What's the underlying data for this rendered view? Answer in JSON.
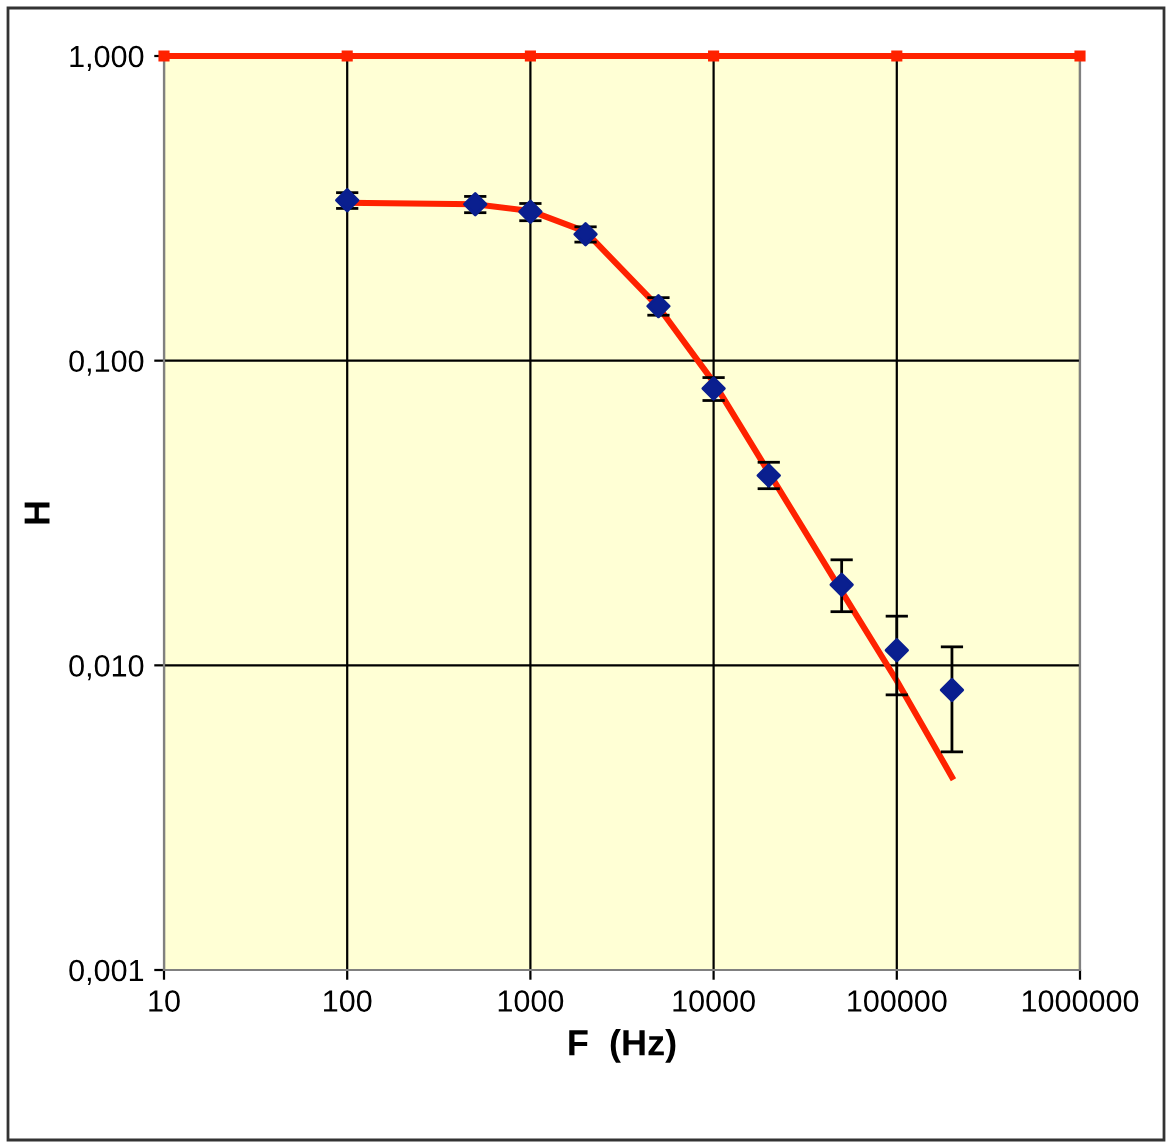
{
  "chart_data": {
    "type": "scatter",
    "xlabel": "F  (Hz)",
    "ylabel": "H",
    "log": "xy",
    "grid": true,
    "xlim": [
      10,
      1000000
    ],
    "ylim": [
      0.001,
      1
    ],
    "xticks": [
      10,
      100,
      1000,
      10000,
      100000,
      1000000
    ],
    "yticks": [
      {
        "value": 0.001,
        "label": "0,001"
      },
      {
        "value": 0.01,
        "label": "0,010"
      },
      {
        "value": 0.1,
        "label": "0,100"
      },
      {
        "value": 1,
        "label": "1,000"
      }
    ],
    "series": [
      {
        "type": "line",
        "color": "#ff2200",
        "marker": "square",
        "x": [
          10,
          100,
          1000,
          10000,
          100000,
          1000000
        ],
        "values": [
          1,
          1,
          1,
          1,
          1,
          1
        ]
      },
      {
        "type": "line",
        "color": "#ff2200",
        "marker": "none",
        "x": [
          100,
          500,
          1000,
          2000,
          5000,
          10000,
          20000,
          50000,
          100000,
          200000
        ],
        "values": [
          0.33,
          0.326,
          0.31,
          0.265,
          0.15,
          0.085,
          0.043,
          0.0175,
          0.0089,
          0.0043
        ]
      },
      {
        "color": "#0a1f8f",
        "marker": "diamond",
        "x": [
          100,
          500,
          1000,
          2000,
          5000,
          10000,
          20000,
          50000,
          100000,
          200000
        ],
        "values": [
          0.336,
          0.326,
          0.308,
          0.26,
          0.151,
          0.081,
          0.042,
          0.0184,
          0.0112,
          0.0083
        ],
        "errors": [
          0.02,
          0.02,
          0.02,
          0.015,
          0.01,
          0.007,
          [
            0.038,
            0.0464
          ],
          [
            0.015,
            0.0222
          ],
          [
            0.008,
            0.0145
          ],
          [
            0.0052,
            0.0115
          ]
        ]
      }
    ]
  }
}
